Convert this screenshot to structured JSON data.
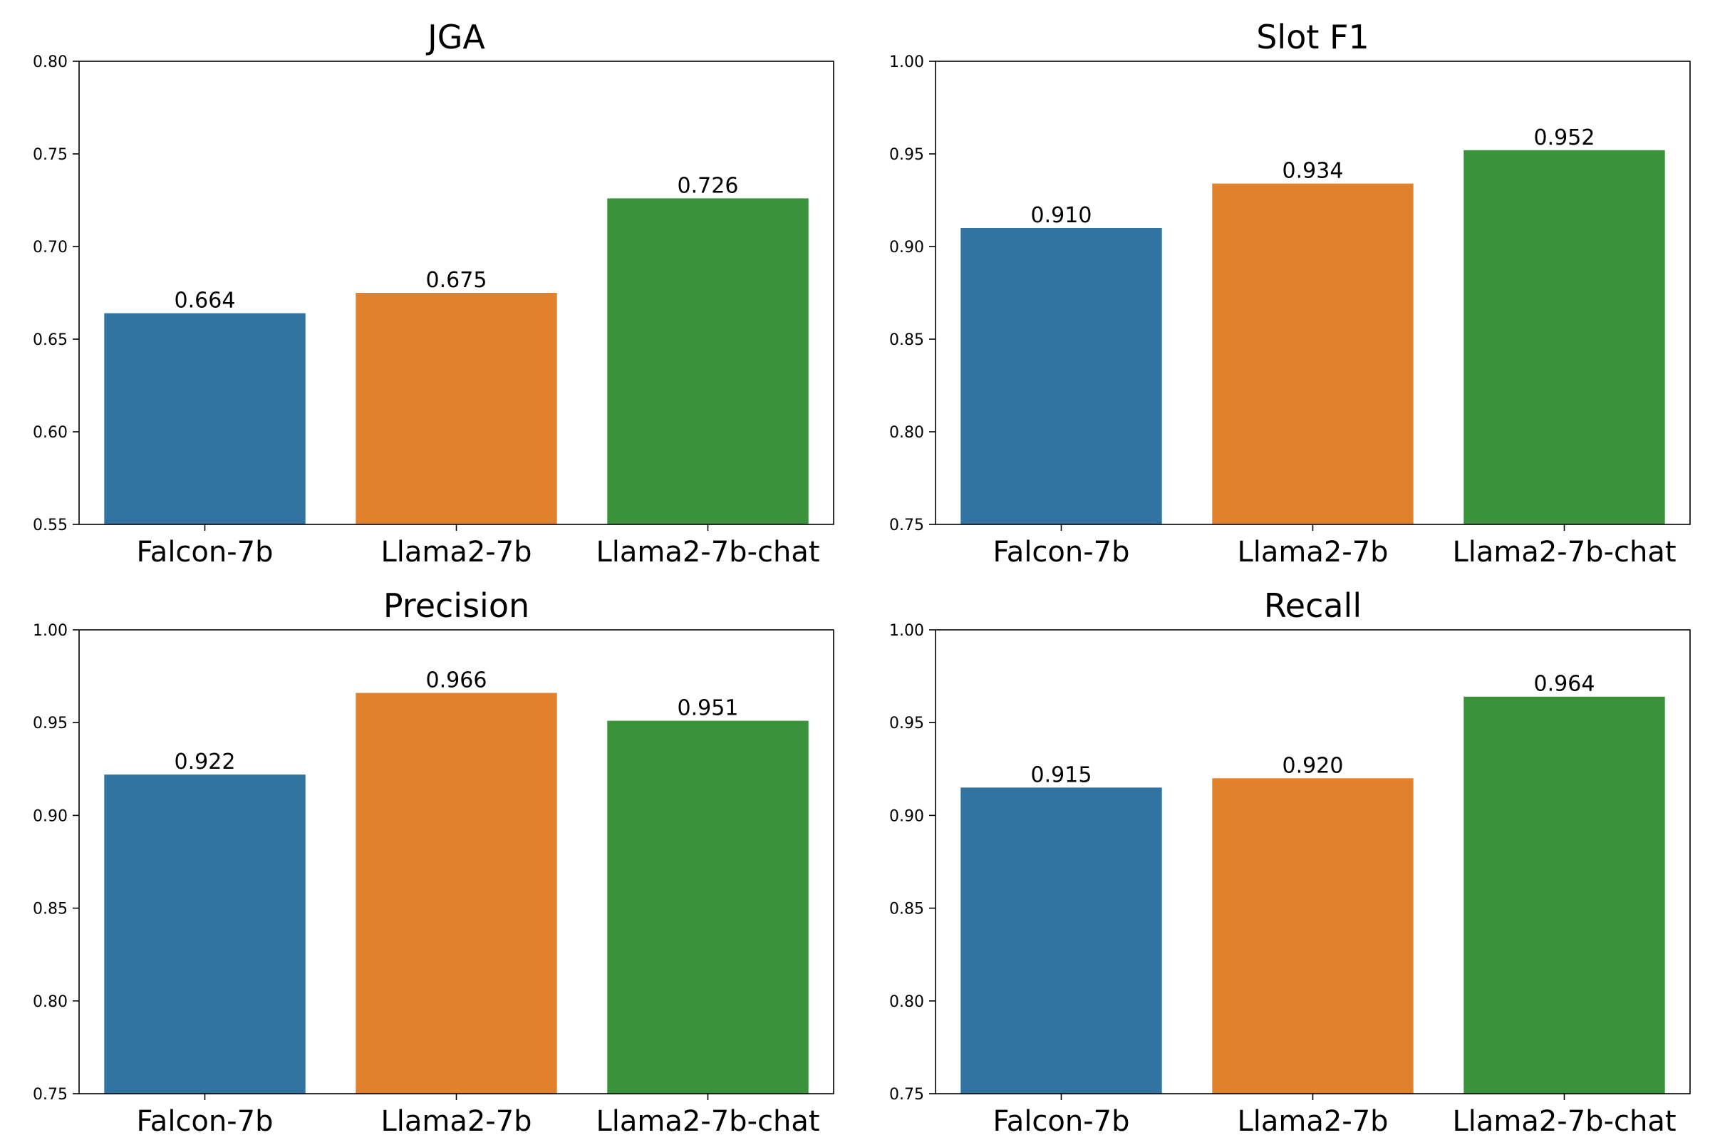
{
  "colors": {
    "Falcon-7b": "#3274a1",
    "Llama2-7b": "#e1812c",
    "Llama2-7b-chat": "#3a923a",
    "axis": "#000000",
    "background": "#ffffff"
  },
  "chart_data": [
    {
      "type": "bar",
      "title": "JGA",
      "xlabel": "",
      "ylabel": "",
      "categories": [
        "Falcon-7b",
        "Llama2-7b",
        "Llama2-7b-chat"
      ],
      "values": [
        0.664,
        0.675,
        0.726
      ],
      "data_labels": [
        "0.664",
        "0.675",
        "0.726"
      ],
      "ylim": [
        0.55,
        0.8
      ],
      "yticks": [
        0.55,
        0.6,
        0.65,
        0.7,
        0.75,
        0.8
      ],
      "ytick_labels": [
        "0.55",
        "0.60",
        "0.65",
        "0.70",
        "0.75",
        "0.80"
      ],
      "grid": false,
      "legend": "none"
    },
    {
      "type": "bar",
      "title": "Slot F1",
      "xlabel": "",
      "ylabel": "",
      "categories": [
        "Falcon-7b",
        "Llama2-7b",
        "Llama2-7b-chat"
      ],
      "values": [
        0.91,
        0.934,
        0.952
      ],
      "data_labels": [
        "0.910",
        "0.934",
        "0.952"
      ],
      "ylim": [
        0.75,
        1.0
      ],
      "yticks": [
        0.75,
        0.8,
        0.85,
        0.9,
        0.95,
        1.0
      ],
      "ytick_labels": [
        "0.75",
        "0.80",
        "0.85",
        "0.90",
        "0.95",
        "1.00"
      ],
      "grid": false,
      "legend": "none"
    },
    {
      "type": "bar",
      "title": "Precision",
      "xlabel": "",
      "ylabel": "",
      "categories": [
        "Falcon-7b",
        "Llama2-7b",
        "Llama2-7b-chat"
      ],
      "values": [
        0.922,
        0.966,
        0.951
      ],
      "data_labels": [
        "0.922",
        "0.966",
        "0.951"
      ],
      "ylim": [
        0.75,
        1.0
      ],
      "yticks": [
        0.75,
        0.8,
        0.85,
        0.9,
        0.95,
        1.0
      ],
      "ytick_labels": [
        "0.75",
        "0.80",
        "0.85",
        "0.90",
        "0.95",
        "1.00"
      ],
      "grid": false,
      "legend": "none"
    },
    {
      "type": "bar",
      "title": "Recall",
      "xlabel": "",
      "ylabel": "",
      "categories": [
        "Falcon-7b",
        "Llama2-7b",
        "Llama2-7b-chat"
      ],
      "values": [
        0.915,
        0.92,
        0.964
      ],
      "data_labels": [
        "0.915",
        "0.920",
        "0.964"
      ],
      "ylim": [
        0.75,
        1.0
      ],
      "yticks": [
        0.75,
        0.8,
        0.85,
        0.9,
        0.95,
        1.0
      ],
      "ytick_labels": [
        "0.75",
        "0.80",
        "0.85",
        "0.90",
        "0.95",
        "1.00"
      ],
      "grid": false,
      "legend": "none"
    }
  ]
}
